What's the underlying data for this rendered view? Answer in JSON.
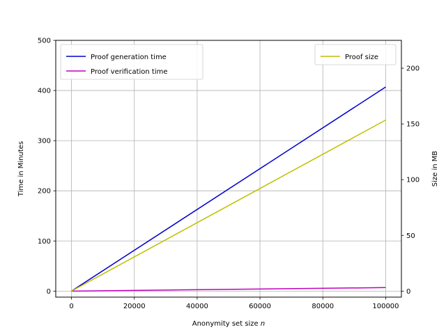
{
  "chart_data": {
    "type": "line",
    "x": [
      0,
      100000
    ],
    "xlabel": "Anonymity set size",
    "xlabel_var": "n",
    "ylabel_left": "Time in Minutes",
    "ylabel_right": "Size in MB",
    "xlim": [
      -5000,
      105000
    ],
    "ylim_left": [
      -12,
      500
    ],
    "ylim_right": [
      -5.4,
      225
    ],
    "xticks": [
      0,
      20000,
      40000,
      60000,
      80000,
      100000
    ],
    "yticks_left": [
      0,
      100,
      200,
      300,
      400,
      500
    ],
    "yticks_right": [
      0,
      50,
      100,
      150,
      200
    ],
    "grid": true,
    "series": [
      {
        "name": "Proof generation time",
        "axis": "left",
        "color": "#0000cc",
        "x": [
          0,
          100000
        ],
        "values": [
          0,
          407
        ]
      },
      {
        "name": "Proof verification time",
        "axis": "left",
        "color": "#bf00bf",
        "x": [
          0,
          100000
        ],
        "values": [
          0,
          7
        ]
      },
      {
        "name": "Proof size",
        "axis": "right",
        "color": "#bfbf00",
        "x": [
          0,
          100000
        ],
        "values": [
          0,
          153.5
        ]
      }
    ],
    "legend_left": {
      "placement": "upper-left",
      "entries": [
        "Proof generation time",
        "Proof verification time"
      ]
    },
    "legend_right": {
      "placement": "upper-right",
      "entries": [
        "Proof size"
      ]
    }
  }
}
